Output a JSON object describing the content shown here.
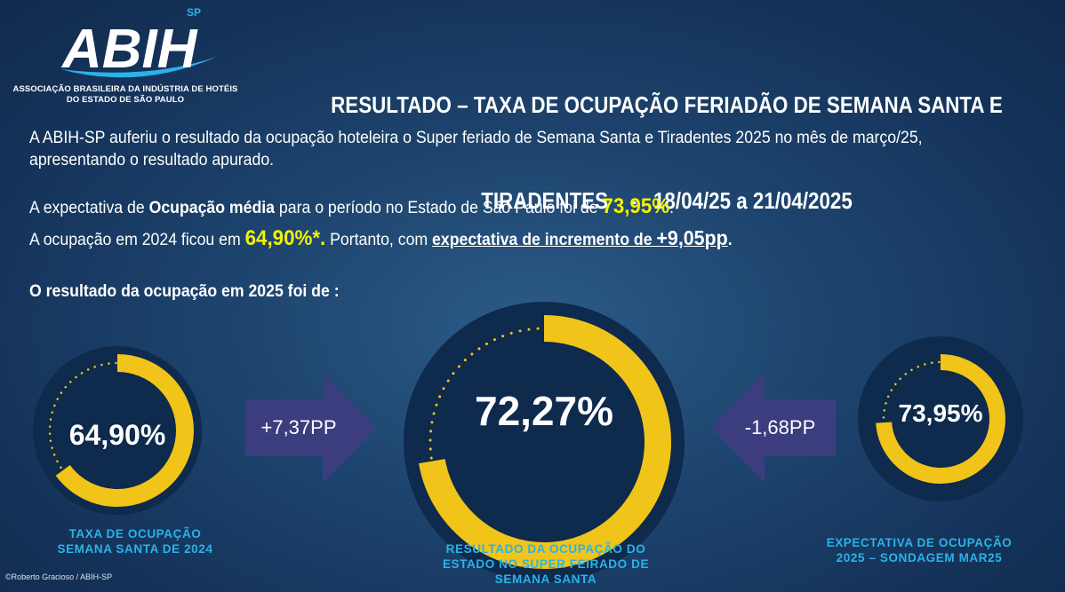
{
  "logo": {
    "brand": "ABIH",
    "superscript": "SP",
    "subtitle_line1": "ASSOCIAÇÃO BRASILEIRA DA INDÚSTRIA DE HOTÉIS",
    "subtitle_line2": "DO ESTADO DE SÃO PAULO"
  },
  "header": {
    "title_line1": "RESULTADO – TAXA DE OCUPAÇÃO FERIADÃO DE SEMANA SANTA E",
    "title_line2": "TIRADENTES    -   18/04/25 a 21/04/2025"
  },
  "intro": {
    "line1": "A ABIH-SP auferiu o resultado da ocupação hoteleira o Super feriado de Semana Santa e Tiradentes 2025 no mês de março/25,",
    "line2": "apresentando o resultado apurado."
  },
  "expectation": {
    "part1": "A expectativa de ",
    "bold": "Ocupação média",
    "part2": " para o período no Estado de São Paulo foi de  ",
    "value": "73,95%",
    "end": "."
  },
  "comparison": {
    "part1": "A ocupação em 2024 ficou em ",
    "value": "64,90%*.",
    "part2": " Portanto, com ",
    "underline_text": "expectativa de incremento de ",
    "underline_value": "+9,05pp",
    "end": "."
  },
  "result_title": "O resultado da ocupação em 2025 foi de :",
  "gauges": {
    "left": {
      "label": "64,90%",
      "value": 64.9,
      "caption_line1": "TAXA DE OCUPAÇÃO",
      "caption_line2": "SEMANA SANTA DE 2024"
    },
    "center": {
      "label": "72,27%",
      "value": 72.27,
      "caption_line1": "RESULTADO DA OCUPAÇÃO DO",
      "caption_line2": "ESTADO NO SUPER FEIRADO DE",
      "caption_line3": "SEMANA SANTA"
    },
    "right": {
      "label": "73,95%",
      "value": 73.95,
      "caption_line1": "EXPECTATIVA DE OCUPAÇÃO",
      "caption_line2": "2025 – SONDAGEM MAR25"
    }
  },
  "arrows": {
    "left": {
      "label": "+7,37PP"
    },
    "right": {
      "label": "-1,68PP"
    }
  },
  "colors": {
    "ring": "#f0c419",
    "accent_text": "#f2f200",
    "caption": "#2ab3e8",
    "arrow": "#3b3d7e"
  },
  "credit": "©Roberto Gracioso / ABIH-SP"
}
